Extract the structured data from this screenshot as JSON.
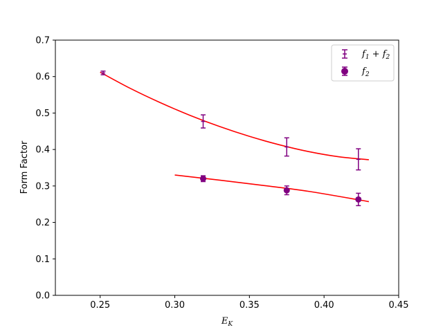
{
  "chart_data": {
    "type": "scatter",
    "xlabel": "E_K",
    "ylabel": "Form Factor",
    "xlim": [
      0.22,
      0.45
    ],
    "ylim": [
      0.0,
      0.7
    ],
    "xticks": [
      "0.25",
      "0.30",
      "0.35",
      "0.40",
      "0.45"
    ],
    "yticks": [
      "0.0",
      "0.1",
      "0.2",
      "0.3",
      "0.4",
      "0.5",
      "0.6",
      "0.7"
    ],
    "grid": false,
    "legend_position": "top-right",
    "series": [
      {
        "name": "f1 + f2",
        "marker": "plus",
        "color": "#800080",
        "x": [
          0.252,
          0.319,
          0.375,
          0.423
        ],
        "y": [
          0.61,
          0.477,
          0.407,
          0.373
        ],
        "yerr": [
          0.005,
          0.018,
          0.025,
          0.029
        ]
      },
      {
        "name": "f2",
        "marker": "circle",
        "color": "#800080",
        "x": [
          0.319,
          0.375,
          0.423
        ],
        "y": [
          0.32,
          0.288,
          0.263
        ],
        "yerr": [
          0.008,
          0.012,
          0.017
        ]
      }
    ],
    "fits": [
      {
        "color": "#ff0000",
        "x": [
          0.25,
          0.27,
          0.29,
          0.31,
          0.33,
          0.35,
          0.37,
          0.39,
          0.41,
          0.43
        ],
        "y": [
          0.612,
          0.568,
          0.529,
          0.494,
          0.463,
          0.436,
          0.413,
          0.394,
          0.38,
          0.372
        ]
      },
      {
        "color": "#ff0000",
        "x": [
          0.3,
          0.33,
          0.36,
          0.39,
          0.43
        ],
        "y": [
          0.33,
          0.316,
          0.301,
          0.285,
          0.257
        ]
      }
    ]
  }
}
